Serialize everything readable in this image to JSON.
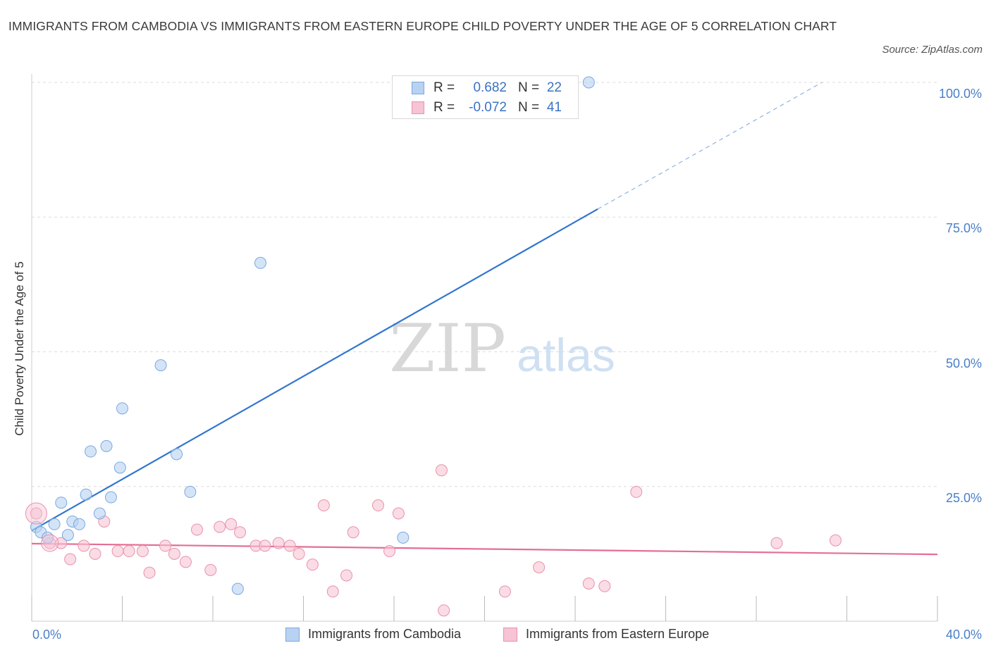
{
  "title": "IMMIGRANTS FROM CAMBODIA VS IMMIGRANTS FROM EASTERN EUROPE CHILD POVERTY UNDER THE AGE OF 5 CORRELATION CHART",
  "source": "Source: ZipAtlas.com",
  "watermark": {
    "part1": "ZIP",
    "part2": "atlas"
  },
  "legend": {
    "r_label": "R =",
    "n_label": "N =",
    "series": [
      {
        "r": "0.682",
        "n": "22"
      },
      {
        "r": "-0.072",
        "n": "41"
      }
    ]
  },
  "colors": {
    "blue_fill": "#b8d2f2",
    "blue_stroke": "#7aa8e0",
    "blue_line": "#3176cf",
    "pink_fill": "#f6c4d4",
    "pink_stroke": "#ea90ad",
    "pink_line": "#e46e96",
    "tick_text": "#4a7fc8",
    "grid": "#dddddd"
  },
  "chart_data": {
    "type": "scatter",
    "title": "IMMIGRANTS FROM CAMBODIA VS IMMIGRANTS FROM EASTERN EUROPE CHILD POVERTY UNDER THE AGE OF 5 CORRELATION CHART",
    "xlabel": "",
    "ylabel": "Child Poverty Under the Age of 5",
    "xlim": [
      0,
      40
    ],
    "ylim": [
      0,
      100
    ],
    "x_tick_labels": [
      "0.0%",
      "40.0%"
    ],
    "y_ticks": [
      25,
      50,
      75,
      100
    ],
    "y_tick_labels": [
      "25.0%",
      "50.0%",
      "75.0%",
      "100.0%"
    ],
    "series": [
      {
        "name": "Immigrants from Cambodia",
        "color": "blue",
        "points": [
          [
            0.2,
            17.5
          ],
          [
            0.4,
            16.5
          ],
          [
            0.7,
            15.5
          ],
          [
            1.0,
            18.0
          ],
          [
            1.3,
            22.0
          ],
          [
            1.6,
            16.0
          ],
          [
            1.8,
            18.5
          ],
          [
            2.1,
            18.0
          ],
          [
            2.4,
            23.5
          ],
          [
            2.6,
            31.5
          ],
          [
            3.0,
            20.0
          ],
          [
            3.3,
            32.5
          ],
          [
            3.5,
            23.0
          ],
          [
            3.9,
            28.5
          ],
          [
            4.0,
            39.5
          ],
          [
            5.7,
            47.5
          ],
          [
            6.4,
            31.0
          ],
          [
            7.0,
            24.0
          ],
          [
            9.1,
            6.0
          ],
          [
            10.1,
            66.5
          ],
          [
            16.4,
            15.5
          ],
          [
            24.6,
            100.0
          ]
        ],
        "trend": {
          "x0": 0,
          "y0": 16.8,
          "x1": 25.0,
          "y1": 76.5,
          "dash_x1": 34.9,
          "dash_y1": 100.0
        }
      },
      {
        "name": "Immigrants from Eastern Europe",
        "color": "pink",
        "points": [
          [
            0.2,
            20.0
          ],
          [
            0.8,
            14.5
          ],
          [
            1.3,
            14.5
          ],
          [
            1.7,
            11.5
          ],
          [
            2.3,
            14.0
          ],
          [
            2.8,
            12.5
          ],
          [
            3.2,
            18.5
          ],
          [
            3.8,
            13.0
          ],
          [
            4.3,
            13.0
          ],
          [
            4.9,
            13.0
          ],
          [
            5.2,
            9.0
          ],
          [
            5.9,
            14.0
          ],
          [
            6.3,
            12.5
          ],
          [
            6.8,
            11.0
          ],
          [
            7.3,
            17.0
          ],
          [
            7.9,
            9.5
          ],
          [
            8.3,
            17.5
          ],
          [
            8.8,
            18.0
          ],
          [
            9.2,
            16.5
          ],
          [
            9.9,
            14.0
          ],
          [
            10.3,
            14.0
          ],
          [
            10.9,
            14.5
          ],
          [
            11.4,
            14.0
          ],
          [
            11.8,
            12.5
          ],
          [
            12.4,
            10.5
          ],
          [
            12.9,
            21.5
          ],
          [
            13.3,
            5.5
          ],
          [
            13.9,
            8.5
          ],
          [
            14.2,
            16.5
          ],
          [
            15.3,
            21.5
          ],
          [
            15.8,
            13.0
          ],
          [
            16.2,
            20.0
          ],
          [
            18.2,
            2.0
          ],
          [
            18.1,
            28.0
          ],
          [
            20.9,
            5.5
          ],
          [
            22.4,
            10.0
          ],
          [
            24.6,
            7.0
          ],
          [
            25.3,
            6.5
          ],
          [
            26.7,
            24.0
          ],
          [
            32.9,
            14.5
          ],
          [
            35.5,
            15.0
          ]
        ],
        "trend": {
          "x0": 0,
          "y0": 14.4,
          "x1": 40,
          "y1": 12.4
        }
      }
    ]
  },
  "bottom_legend": [
    "Immigrants from Cambodia",
    "Immigrants from Eastern Europe"
  ]
}
